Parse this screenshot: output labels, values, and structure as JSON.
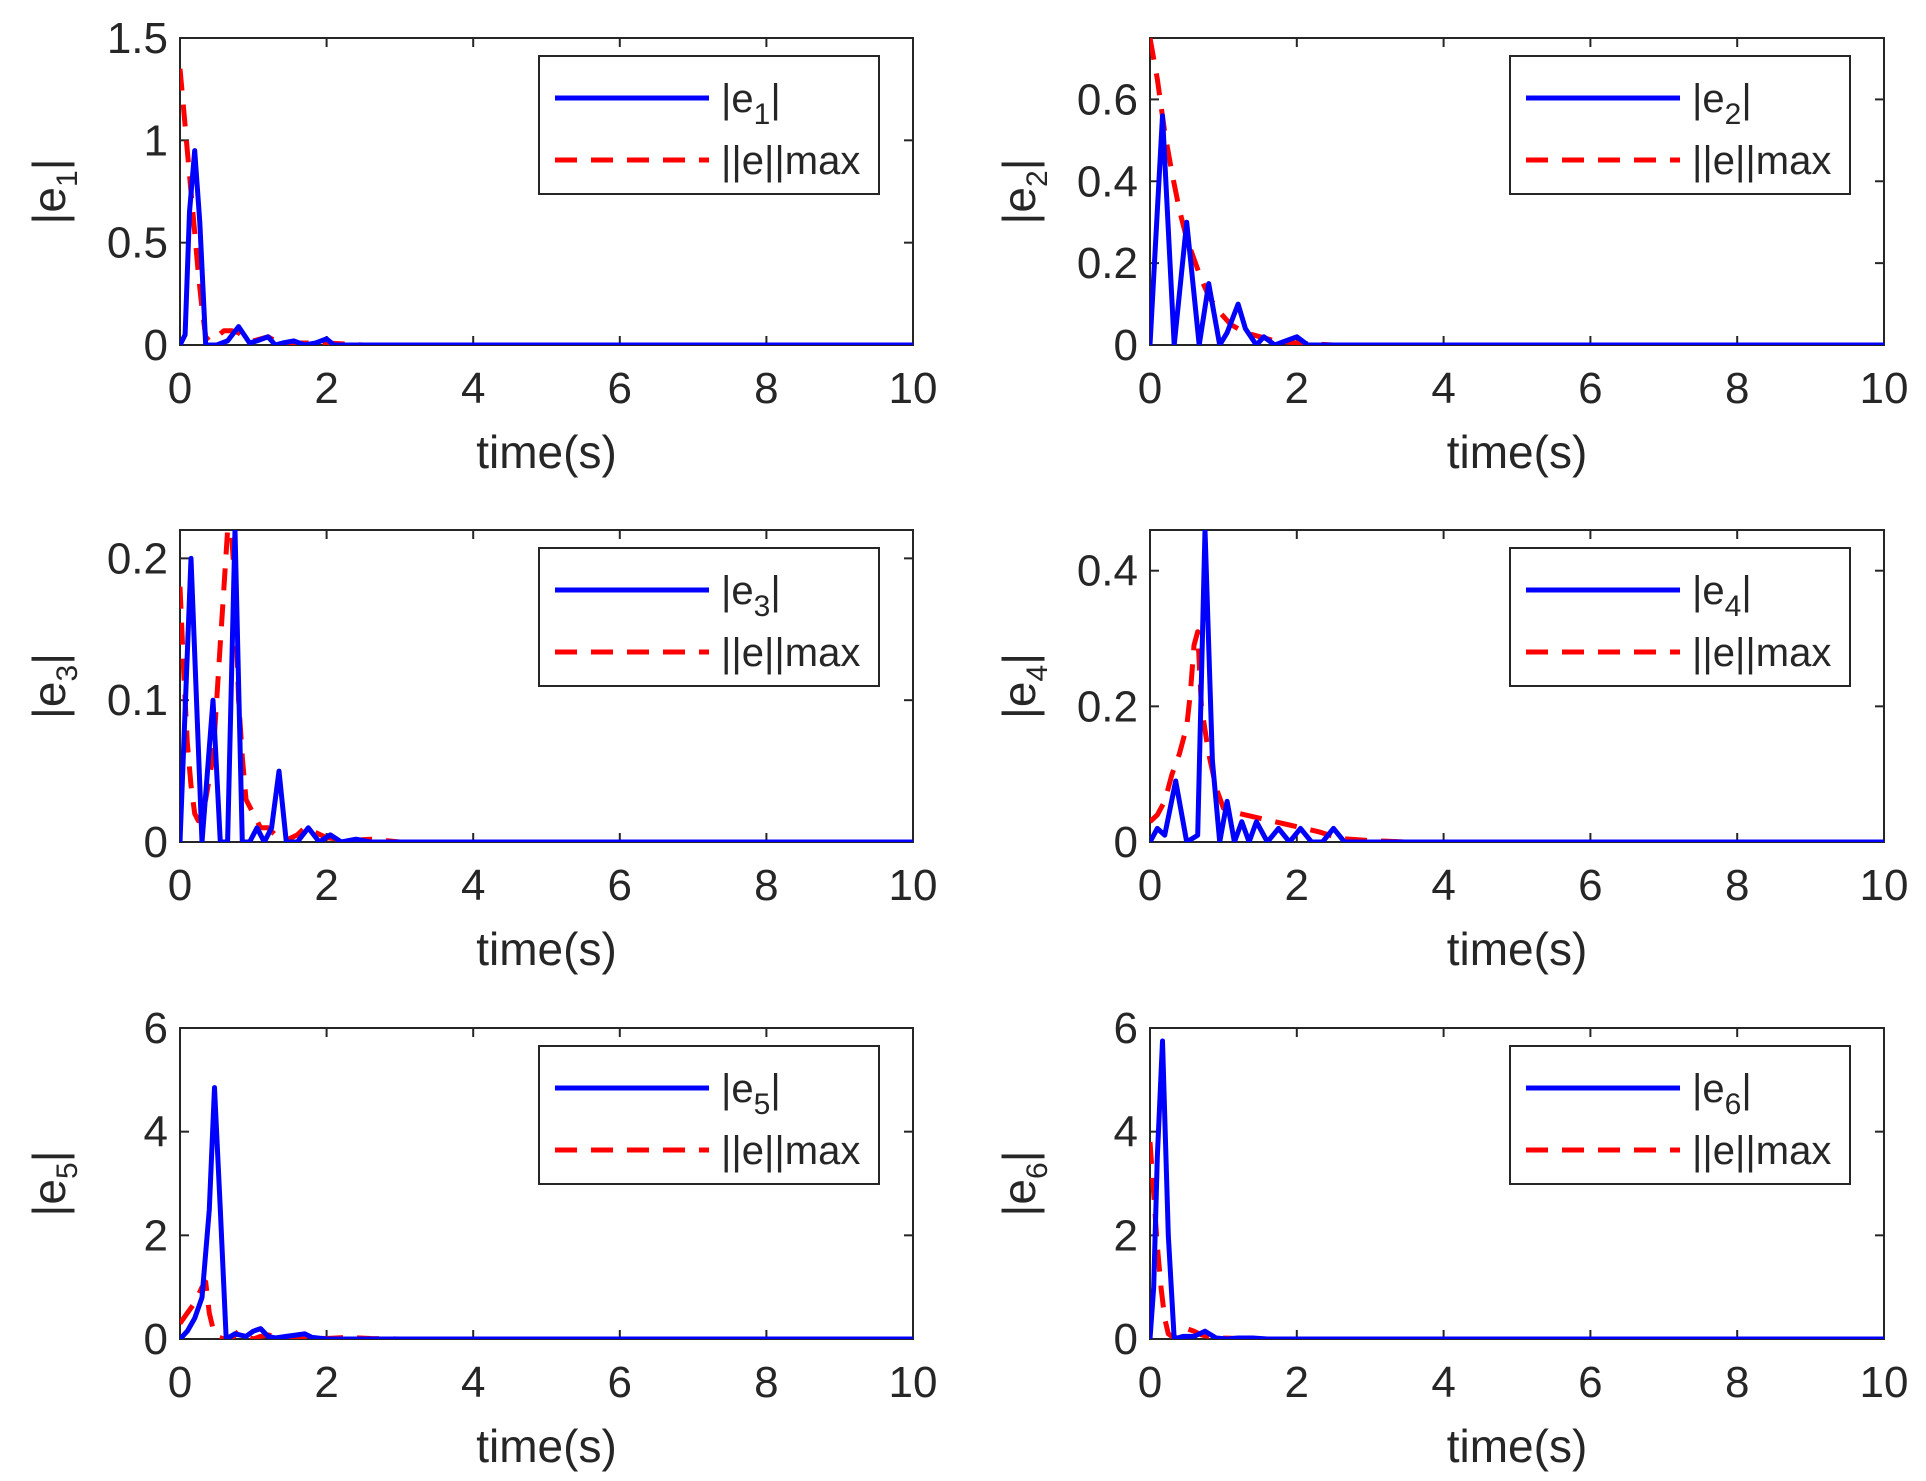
{
  "colors": {
    "blue": "#0000ff",
    "red": "#ff0000",
    "axis": "#262626",
    "background": "#ffffff"
  },
  "chart_data": [
    {
      "type": "line",
      "panel": "top-left",
      "xlabel": "time(s)",
      "ylabel": "|e1|",
      "ylabel_parts": {
        "base": "|e",
        "sub": "1",
        "tail": "|"
      },
      "xlim": [
        0,
        10
      ],
      "ylim": [
        0,
        1.5
      ],
      "xticks": [
        0,
        2,
        4,
        6,
        8,
        10
      ],
      "xtick_labels": [
        "0",
        "2",
        "4",
        "6",
        "8",
        "10"
      ],
      "yticks": [
        0,
        0.5,
        1,
        1.5
      ],
      "ytick_labels": [
        "0",
        "0.5",
        "1",
        "1.5"
      ],
      "legend_position": "top-right",
      "legend": [
        {
          "parts": {
            "base": "|e",
            "sub": "1",
            "tail": "|"
          },
          "style": "solid",
          "color": "blue"
        },
        {
          "label": "||e||max",
          "style": "dashed",
          "color": "red"
        }
      ],
      "series": [
        {
          "name": "|e1|",
          "style": "solid",
          "color": "blue",
          "x": [
            0,
            0.07,
            0.13,
            0.2,
            0.27,
            0.35,
            0.5,
            0.65,
            0.8,
            0.95,
            1.05,
            1.2,
            1.3,
            1.4,
            1.55,
            1.7,
            1.85,
            2.0,
            2.1,
            2.3,
            10
          ],
          "y": [
            0,
            0.05,
            0.65,
            0.95,
            0.6,
            0.0,
            0.0,
            0.02,
            0.09,
            0.01,
            0.02,
            0.04,
            0.0,
            0.01,
            0.02,
            0.0,
            0.01,
            0.03,
            0.0,
            0.0,
            0
          ]
        },
        {
          "name": "||e||max",
          "style": "dashed",
          "color": "red",
          "x": [
            0,
            0.05,
            0.1,
            0.15,
            0.2,
            0.25,
            0.3,
            0.35,
            0.4,
            0.5,
            0.6,
            0.7,
            0.8,
            0.9,
            1.0,
            1.1,
            1.2,
            1.3,
            1.5,
            1.7,
            2.0,
            2.5,
            10
          ],
          "y": [
            1.35,
            1.15,
            0.95,
            0.75,
            0.55,
            0.35,
            0.18,
            0.04,
            0.02,
            0.04,
            0.07,
            0.07,
            0.06,
            0.03,
            0.02,
            0.03,
            0.04,
            0.02,
            0.01,
            0.01,
            0.01,
            0.0,
            0
          ]
        }
      ]
    },
    {
      "type": "line",
      "panel": "top-right",
      "xlabel": "time(s)",
      "ylabel": "|e2|",
      "ylabel_parts": {
        "base": "|e",
        "sub": "2",
        "tail": "|"
      },
      "xlim": [
        0,
        10
      ],
      "ylim": [
        0,
        0.75
      ],
      "xticks": [
        0,
        2,
        4,
        6,
        8,
        10
      ],
      "xtick_labels": [
        "0",
        "2",
        "4",
        "6",
        "8",
        "10"
      ],
      "yticks": [
        0,
        0.2,
        0.4,
        0.6
      ],
      "ytick_labels": [
        "0",
        "0.2",
        "0.4",
        "0.6"
      ],
      "legend_position": "top-right",
      "legend": [
        {
          "parts": {
            "base": "|e",
            "sub": "2",
            "tail": "|"
          },
          "style": "solid",
          "color": "blue"
        },
        {
          "label": "||e||max",
          "style": "dashed",
          "color": "red"
        }
      ],
      "series": [
        {
          "name": "|e2|",
          "style": "solid",
          "color": "blue",
          "x": [
            0,
            0.17,
            0.33,
            0.5,
            0.67,
            0.8,
            0.95,
            1.05,
            1.2,
            1.3,
            1.45,
            1.55,
            1.7,
            1.85,
            2.0,
            2.15,
            10
          ],
          "y": [
            0,
            0.56,
            0.0,
            0.3,
            0.0,
            0.15,
            0.0,
            0.03,
            0.1,
            0.04,
            0.0,
            0.02,
            0.0,
            0.01,
            0.02,
            0.0,
            0
          ]
        },
        {
          "name": "||e||max",
          "style": "dashed",
          "color": "red",
          "x": [
            0,
            0.1,
            0.2,
            0.3,
            0.4,
            0.5,
            0.6,
            0.7,
            0.8,
            0.9,
            1.0,
            1.1,
            1.2,
            1.3,
            1.5,
            1.7,
            2.0,
            2.5,
            10
          ],
          "y": [
            0.75,
            0.65,
            0.52,
            0.42,
            0.33,
            0.26,
            0.21,
            0.16,
            0.12,
            0.09,
            0.07,
            0.05,
            0.04,
            0.03,
            0.02,
            0.01,
            0.005,
            0.0,
            0
          ]
        }
      ]
    },
    {
      "type": "line",
      "panel": "middle-left",
      "xlabel": "time(s)",
      "ylabel": "|e3|",
      "ylabel_parts": {
        "base": "|e",
        "sub": "3",
        "tail": "|"
      },
      "xlim": [
        0,
        10
      ],
      "ylim": [
        0,
        0.22
      ],
      "xticks": [
        0,
        2,
        4,
        6,
        8,
        10
      ],
      "xtick_labels": [
        "0",
        "2",
        "4",
        "6",
        "8",
        "10"
      ],
      "yticks": [
        0,
        0.1,
        0.2
      ],
      "ytick_labels": [
        "0",
        "0.1",
        "0.2"
      ],
      "legend_position": "top-right",
      "legend": [
        {
          "parts": {
            "base": "|e",
            "sub": "3",
            "tail": "|"
          },
          "style": "solid",
          "color": "blue"
        },
        {
          "label": "||e||max",
          "style": "dashed",
          "color": "red"
        }
      ],
      "series": [
        {
          "name": "|e3|",
          "style": "solid",
          "color": "blue",
          "x": [
            0,
            0.15,
            0.3,
            0.45,
            0.55,
            0.65,
            0.75,
            0.85,
            0.95,
            1.05,
            1.15,
            1.25,
            1.35,
            1.45,
            1.6,
            1.75,
            1.9,
            2.05,
            2.2,
            2.4,
            2.6,
            10
          ],
          "y": [
            0,
            0.2,
            0.0,
            0.1,
            0.0,
            0.0,
            0.22,
            0.0,
            0.0,
            0.01,
            0.0,
            0.01,
            0.05,
            0.0,
            0.0,
            0.01,
            0.0,
            0.005,
            0.0,
            0.002,
            0.0,
            0
          ]
        },
        {
          "name": "||e||max",
          "style": "dashed",
          "color": "red",
          "x": [
            0,
            0.05,
            0.1,
            0.15,
            0.2,
            0.25,
            0.35,
            0.45,
            0.5,
            0.55,
            0.6,
            0.65,
            0.7,
            0.75,
            0.8,
            0.85,
            0.9,
            1.0,
            1.1,
            1.2,
            1.4,
            1.6,
            1.7,
            1.8,
            2.0,
            2.3,
            2.6,
            3.0,
            10
          ],
          "y": [
            0.18,
            0.12,
            0.07,
            0.04,
            0.02,
            0.015,
            0.03,
            0.06,
            0.1,
            0.14,
            0.18,
            0.22,
            0.22,
            0.18,
            0.1,
            0.06,
            0.03,
            0.02,
            0.01,
            0.01,
            0.0,
            0.005,
            0.01,
            0.008,
            0.003,
            0.001,
            0.002,
            0.0,
            0
          ]
        }
      ]
    },
    {
      "type": "line",
      "panel": "middle-right",
      "xlabel": "time(s)",
      "ylabel": "|e4|",
      "ylabel_parts": {
        "base": "|e",
        "sub": "4",
        "tail": "|"
      },
      "xlim": [
        0,
        10
      ],
      "ylim": [
        0,
        0.46
      ],
      "xticks": [
        0,
        2,
        4,
        6,
        8,
        10
      ],
      "xtick_labels": [
        "0",
        "2",
        "4",
        "6",
        "8",
        "10"
      ],
      "yticks": [
        0,
        0.2,
        0.4
      ],
      "ytick_labels": [
        "0",
        "0.2",
        "0.4"
      ],
      "legend_position": "top-right",
      "legend": [
        {
          "parts": {
            "base": "|e",
            "sub": "4",
            "tail": "|"
          },
          "style": "solid",
          "color": "blue"
        },
        {
          "label": "||e||max",
          "style": "dashed",
          "color": "red"
        }
      ],
      "series": [
        {
          "name": "|e4|",
          "style": "solid",
          "color": "blue",
          "x": [
            0,
            0.1,
            0.2,
            0.35,
            0.5,
            0.65,
            0.75,
            0.85,
            0.95,
            1.05,
            1.15,
            1.25,
            1.35,
            1.45,
            1.6,
            1.75,
            1.9,
            2.05,
            2.2,
            2.35,
            2.5,
            2.65,
            10
          ],
          "y": [
            0,
            0.02,
            0.01,
            0.09,
            0.0,
            0.01,
            0.46,
            0.12,
            0.0,
            0.06,
            0.0,
            0.03,
            0.0,
            0.03,
            0.0,
            0.02,
            0.0,
            0.02,
            0.0,
            0.0,
            0.02,
            0.0,
            0
          ]
        },
        {
          "name": "||e||max",
          "style": "dashed",
          "color": "red",
          "x": [
            0,
            0.1,
            0.2,
            0.3,
            0.4,
            0.5,
            0.55,
            0.6,
            0.65,
            0.7,
            0.8,
            0.9,
            1.0,
            1.1,
            1.3,
            1.5,
            1.7,
            1.9,
            2.1,
            2.3,
            2.6,
            3.0,
            3.5,
            10
          ],
          "y": [
            0.03,
            0.04,
            0.06,
            0.1,
            0.13,
            0.17,
            0.22,
            0.29,
            0.31,
            0.2,
            0.13,
            0.08,
            0.05,
            0.045,
            0.04,
            0.035,
            0.03,
            0.025,
            0.02,
            0.015,
            0.005,
            0.002,
            0.0,
            0
          ]
        }
      ]
    },
    {
      "type": "line",
      "panel": "bottom-left",
      "xlabel": "time(s)",
      "ylabel": "|e5|",
      "ylabel_parts": {
        "base": "|e",
        "sub": "5",
        "tail": "|"
      },
      "xlim": [
        0,
        10
      ],
      "ylim": [
        0,
        6
      ],
      "xticks": [
        0,
        2,
        4,
        6,
        8,
        10
      ],
      "xtick_labels": [
        "0",
        "2",
        "4",
        "6",
        "8",
        "10"
      ],
      "yticks": [
        0,
        2,
        4,
        6
      ],
      "ytick_labels": [
        "0",
        "2",
        "4",
        "6"
      ],
      "legend_position": "top-right",
      "legend": [
        {
          "parts": {
            "base": "|e",
            "sub": "5",
            "tail": "|"
          },
          "style": "solid",
          "color": "blue"
        },
        {
          "label": "||e||max",
          "style": "dashed",
          "color": "red"
        }
      ],
      "series": [
        {
          "name": "|e5|",
          "style": "solid",
          "color": "blue",
          "x": [
            0,
            0.1,
            0.2,
            0.3,
            0.4,
            0.47,
            0.55,
            0.63,
            0.75,
            0.9,
            1.0,
            1.1,
            1.2,
            1.3,
            1.45,
            1.6,
            1.7,
            1.8,
            2.0,
            2.5,
            10
          ],
          "y": [
            0,
            0.15,
            0.4,
            0.8,
            2.5,
            4.85,
            2.5,
            0.0,
            0.1,
            0.05,
            0.15,
            0.2,
            0.05,
            0.02,
            0.05,
            0.08,
            0.1,
            0.03,
            0.0,
            0.0,
            0
          ]
        },
        {
          "name": "||e||max",
          "style": "dashed",
          "color": "red",
          "x": [
            0,
            0.1,
            0.2,
            0.3,
            0.35,
            0.4,
            0.45,
            0.5,
            0.6,
            0.7,
            0.8,
            0.9,
            1.0,
            1.1,
            1.2,
            1.3,
            1.5,
            1.7,
            2.0,
            2.3,
            2.6,
            3.0,
            10
          ],
          "y": [
            0.3,
            0.5,
            0.7,
            1.0,
            1.1,
            0.5,
            0.2,
            0.05,
            0.0,
            0.0,
            0.15,
            0.05,
            0.0,
            0.05,
            0.08,
            0.05,
            0.02,
            0.02,
            0.01,
            0.03,
            0.01,
            0.0,
            0
          ]
        }
      ]
    },
    {
      "type": "line",
      "panel": "bottom-right",
      "xlabel": "time(s)",
      "ylabel": "|e6|",
      "ylabel_parts": {
        "base": "|e",
        "sub": "6",
        "tail": "|"
      },
      "xlim": [
        0,
        10
      ],
      "ylim": [
        0,
        6
      ],
      "xticks": [
        0,
        2,
        4,
        6,
        8,
        10
      ],
      "xtick_labels": [
        "0",
        "2",
        "4",
        "6",
        "8",
        "10"
      ],
      "yticks": [
        0,
        2,
        4,
        6
      ],
      "ytick_labels": [
        "0",
        "2",
        "4",
        "6"
      ],
      "legend_position": "top-right",
      "legend": [
        {
          "parts": {
            "base": "|e",
            "sub": "6",
            "tail": "|"
          },
          "style": "solid",
          "color": "blue"
        },
        {
          "label": "||e||max",
          "style": "dashed",
          "color": "red"
        }
      ],
      "series": [
        {
          "name": "|e6|",
          "style": "solid",
          "color": "blue",
          "x": [
            0,
            0.05,
            0.1,
            0.17,
            0.25,
            0.33,
            0.45,
            0.6,
            0.75,
            0.9,
            1.05,
            1.2,
            1.4,
            1.6,
            10
          ],
          "y": [
            0,
            1.0,
            3.5,
            5.75,
            2.0,
            0.0,
            0.05,
            0.05,
            0.15,
            0.02,
            0.0,
            0.02,
            0.02,
            0.0,
            0
          ]
        },
        {
          "name": "||e||max",
          "style": "dashed",
          "color": "red",
          "x": [
            0,
            0.05,
            0.1,
            0.15,
            0.2,
            0.25,
            0.3,
            0.4,
            0.5,
            0.6,
            0.7,
            0.8,
            1.0,
            1.2,
            1.5,
            2.0,
            10
          ],
          "y": [
            3.8,
            2.8,
            1.8,
            1.0,
            0.4,
            0.1,
            0.05,
            0.15,
            0.2,
            0.15,
            0.08,
            0.05,
            0.02,
            0.01,
            0.0,
            0.0,
            0
          ]
        }
      ]
    }
  ]
}
